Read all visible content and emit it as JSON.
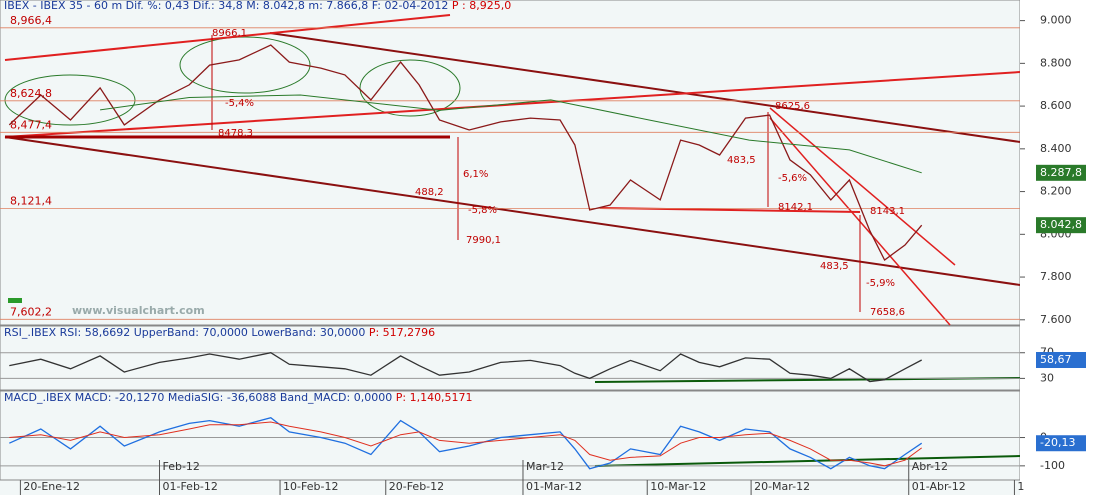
{
  "chart_data": [
    {
      "type": "line",
      "header": "IBEX - IBEX 35 -  60 m Dif. %: 0,43 Dif.: 34,8 M: 8.042,8 m: 7.866,8 F: 02-04-2012",
      "header_p": "P : 8,925,0",
      "watermark": "www.visualchart.com",
      "xlim": [
        0,
        55
      ],
      "ylim": [
        7585,
        9045
      ],
      "yticks": [
        {
          "value": 9000,
          "label": "9.000"
        },
        {
          "value": 8800,
          "label": "8.800"
        },
        {
          "value": 8600,
          "label": "8.600"
        },
        {
          "value": 8400,
          "label": "8.400"
        },
        {
          "value": 8200,
          "label": "8.200"
        },
        {
          "value": 8000,
          "label": "8.000"
        },
        {
          "value": 7800,
          "label": "7.800"
        },
        {
          "value": 7600,
          "label": "7.600"
        }
      ],
      "levels": [
        {
          "value": 8966.4,
          "label": "8,966,4"
        },
        {
          "value": 8624.8,
          "label": "8,624,8"
        },
        {
          "value": 8477.4,
          "label": "8,477,4"
        },
        {
          "value": 8121.4,
          "label": "8,121,4"
        },
        {
          "value": 7602.2,
          "label": "7,602,2"
        }
      ],
      "value_boxes": [
        {
          "value": 8287.8,
          "label": "8.287,8",
          "color": "#2a7a2a"
        },
        {
          "value": 8042.8,
          "label": "8.042,8",
          "color": "#2a7a2a"
        }
      ],
      "annotations": [
        "8966,1",
        "-5,4%",
        "8478,3",
        "488,2",
        "6,1%",
        "-5,8%",
        "7990,1",
        "483,5",
        "-5,6%",
        "8142,1",
        "8625,6",
        "8143,1",
        "483,5",
        "-5,9%",
        "7658,6"
      ],
      "series": [
        {
          "color": "#8b1a1a",
          "x": [
            0.5,
            2.2,
            3.8,
            5.4,
            6.7,
            8.6,
            10.2,
            11.3,
            12.9,
            14.6,
            15.6,
            17.3,
            18.6,
            20.0,
            21.6,
            22.6,
            23.7,
            25.3,
            27.0,
            28.6,
            30.2,
            31.0,
            31.8,
            32.9,
            34.0,
            35.6,
            36.7,
            37.7,
            38.8,
            40.2,
            41.5,
            42.6,
            43.7,
            44.8,
            45.8,
            46.9,
            47.7,
            48.8,
            49.7
          ],
          "values": [
            8512,
            8652,
            8535,
            8685,
            8512,
            8629,
            8699,
            8792,
            8816,
            8886,
            8806,
            8778,
            8746,
            8629,
            8806,
            8699,
            8535,
            8488,
            8526,
            8544,
            8535,
            8418,
            8114,
            8137,
            8254,
            8161,
            8441,
            8418,
            8371,
            8544,
            8558,
            8348,
            8278,
            8161,
            8254,
            8017,
            7880,
            7950,
            8042.8
          ]
        },
        {
          "color": "#2a7a2a",
          "x": [
            5.4,
            10.2,
            16.2,
            23.7,
            29.7,
            35.0,
            40.4,
            45.8,
            49.7
          ],
          "values": [
            8582,
            8640,
            8652,
            8580,
            8629,
            8535,
            8441,
            8395,
            8287.8
          ]
        }
      ]
    },
    {
      "type": "line",
      "header": "RSI_.IBEX RSI: 58,6692 UpperBand: 70,0000 LowerBand: 30,0000",
      "header_p": "P: 517,2796",
      "xlim": [
        0,
        55
      ],
      "ylim": [
        15,
        93
      ],
      "yticks": [
        70,
        30
      ],
      "value_boxes": [
        {
          "value": 58.67,
          "label": "58,67",
          "color": "#2a6fd0"
        }
      ],
      "series": [
        {
          "color": "#333333",
          "x": [
            0.5,
            2.2,
            3.8,
            5.4,
            6.7,
            8.6,
            10.2,
            11.3,
            12.9,
            14.6,
            15.6,
            17.3,
            18.6,
            20.0,
            21.6,
            22.6,
            23.7,
            25.3,
            27.0,
            28.6,
            30.2,
            31.0,
            31.8,
            32.9,
            34.0,
            35.6,
            36.7,
            37.7,
            38.8,
            40.2,
            41.5,
            42.6,
            43.7,
            44.8,
            45.8,
            46.9,
            47.7,
            48.8,
            49.7
          ],
          "values": [
            50,
            60,
            45,
            65,
            40,
            55,
            62,
            68,
            60,
            70,
            52,
            48,
            45,
            35,
            65,
            50,
            35,
            40,
            55,
            58,
            50,
            38,
            30,
            45,
            58,
            42,
            68,
            55,
            48,
            62,
            60,
            38,
            35,
            30,
            45,
            25,
            28,
            45,
            58.67
          ]
        }
      ]
    },
    {
      "type": "line",
      "header": "MACD_.IBEX MACD: -20,1270 MediaSIG: -36,6088 Band_MACD: 0,0000",
      "header_p": "P: 1,140,5171",
      "xlim": [
        0,
        55
      ],
      "ylim": [
        -150,
        122
      ],
      "yticks": [
        0,
        -100
      ],
      "value_boxes": [
        {
          "value": -20.13,
          "label": "-20,13",
          "color": "#2a6fd0"
        }
      ],
      "xticks": [
        {
          "value": 1.1,
          "label": "20-Ene-12"
        },
        {
          "value": 8.6,
          "label": "01-Feb-12"
        },
        {
          "value": 15.1,
          "label": "10-Feb-12"
        },
        {
          "value": 20.8,
          "label": "20-Feb-12"
        },
        {
          "value": 28.2,
          "label": "01-Mar-12"
        },
        {
          "value": 34.9,
          "label": "10-Mar-12"
        },
        {
          "value": 40.5,
          "label": "20-Mar-12"
        },
        {
          "value": 49.0,
          "label": "01-Abr-12"
        },
        {
          "value": 54.7,
          "label": "1"
        }
      ],
      "month_ticks": [
        {
          "value": 8.6,
          "label": "Feb-12"
        },
        {
          "value": 28.2,
          "label": "Mar-12"
        },
        {
          "value": 49.0,
          "label": "Abr-12"
        }
      ],
      "series": [
        {
          "color": "#1f6fe0",
          "x": [
            0.5,
            2.2,
            3.8,
            5.4,
            6.7,
            8.6,
            10.2,
            11.3,
            12.9,
            14.6,
            15.6,
            17.3,
            18.6,
            20.0,
            21.6,
            22.6,
            23.7,
            25.3,
            27.0,
            28.6,
            30.2,
            31.0,
            31.8,
            32.9,
            34.0,
            35.6,
            36.7,
            37.7,
            38.8,
            40.2,
            41.5,
            42.6,
            43.7,
            44.8,
            45.8,
            46.9,
            47.7,
            48.8,
            49.7
          ],
          "values": [
            -20,
            30,
            -40,
            40,
            -30,
            20,
            50,
            60,
            40,
            70,
            20,
            0,
            -20,
            -60,
            60,
            20,
            -50,
            -30,
            0,
            10,
            20,
            -40,
            -110,
            -90,
            -40,
            -60,
            40,
            20,
            -10,
            30,
            20,
            -40,
            -70,
            -110,
            -70,
            -100,
            -110,
            -60,
            -20.13
          ]
        },
        {
          "color": "#e03020",
          "x": [
            0.5,
            2.2,
            3.8,
            5.4,
            6.7,
            8.6,
            10.2,
            11.3,
            12.9,
            14.6,
            15.6,
            17.3,
            18.6,
            20.0,
            21.6,
            22.6,
            23.7,
            25.3,
            27.0,
            28.6,
            30.2,
            31.0,
            31.8,
            32.9,
            34.0,
            35.6,
            36.7,
            37.7,
            38.8,
            40.2,
            41.5,
            42.6,
            43.7,
            44.8,
            45.8,
            46.9,
            47.7,
            48.8,
            49.7
          ],
          "values": [
            0,
            10,
            -10,
            20,
            0,
            10,
            30,
            45,
            45,
            55,
            40,
            20,
            0,
            -30,
            10,
            20,
            -10,
            -20,
            -10,
            0,
            10,
            -10,
            -60,
            -80,
            -70,
            -65,
            -20,
            0,
            0,
            10,
            15,
            -10,
            -40,
            -80,
            -80,
            -90,
            -100,
            -80,
            -36.61
          ]
        }
      ]
    }
  ]
}
